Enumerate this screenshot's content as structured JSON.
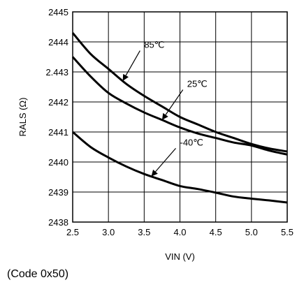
{
  "chart_data": {
    "type": "line",
    "xlabel": "VIN (V)",
    "ylabel": "RALS (Ω)",
    "xlim": [
      2.5,
      5.5
    ],
    "ylim": [
      2438,
      2445
    ],
    "x_ticks": [
      2.5,
      3.0,
      3.5,
      4.0,
      4.5,
      5.0,
      5.5
    ],
    "x_tick_labels": [
      "2.5",
      "3.0",
      "3.5",
      "4.0",
      "4.5",
      "5.0",
      "5.5"
    ],
    "y_ticks": [
      2438,
      2439,
      2440,
      2441,
      2442,
      2443,
      2444,
      2445
    ],
    "y_tick_labels": [
      "2438",
      "2439",
      "2440",
      "2441",
      "2442",
      "2.443",
      "2444",
      "2445"
    ],
    "grid": true,
    "series": [
      {
        "name": "85℃",
        "x": [
          2.5,
          2.75,
          3.0,
          3.25,
          3.5,
          3.75,
          4.0,
          4.25,
          4.5,
          4.75,
          5.0,
          5.25,
          5.5
        ],
        "y": [
          2444.3,
          2443.6,
          2443.1,
          2442.6,
          2442.2,
          2441.85,
          2441.5,
          2441.25,
          2441.0,
          2440.8,
          2440.6,
          2440.45,
          2440.35
        ]
      },
      {
        "name": "25℃",
        "x": [
          2.5,
          2.75,
          3.0,
          3.25,
          3.5,
          3.75,
          4.0,
          4.25,
          4.5,
          4.75,
          5.0,
          5.25,
          5.5
        ],
        "y": [
          2443.5,
          2442.85,
          2442.3,
          2441.95,
          2441.65,
          2441.4,
          2441.15,
          2440.95,
          2440.8,
          2440.65,
          2440.55,
          2440.38,
          2440.25
        ]
      },
      {
        "name": "-40℃",
        "x": [
          2.5,
          2.75,
          3.0,
          3.25,
          3.5,
          3.75,
          4.0,
          4.25,
          4.5,
          4.75,
          5.0,
          5.25,
          5.5
        ],
        "y": [
          2441.0,
          2440.5,
          2440.15,
          2439.85,
          2439.6,
          2439.4,
          2439.2,
          2439.1,
          2438.98,
          2438.85,
          2438.78,
          2438.72,
          2438.65
        ]
      }
    ],
    "annotations": [
      {
        "text": "85℃",
        "series": "85℃",
        "arrow_to_x": 3.2,
        "text_x": 3.5,
        "text_y": 2443.8
      },
      {
        "text": "25℃",
        "series": "25℃",
        "arrow_to_x": 3.75,
        "text_x": 4.1,
        "text_y": 2442.5
      },
      {
        "text": "-40℃",
        "series": "-40℃",
        "arrow_to_x": 3.6,
        "text_x": 4.0,
        "text_y": 2440.55
      }
    ]
  },
  "caption": "(Code 0x50)"
}
